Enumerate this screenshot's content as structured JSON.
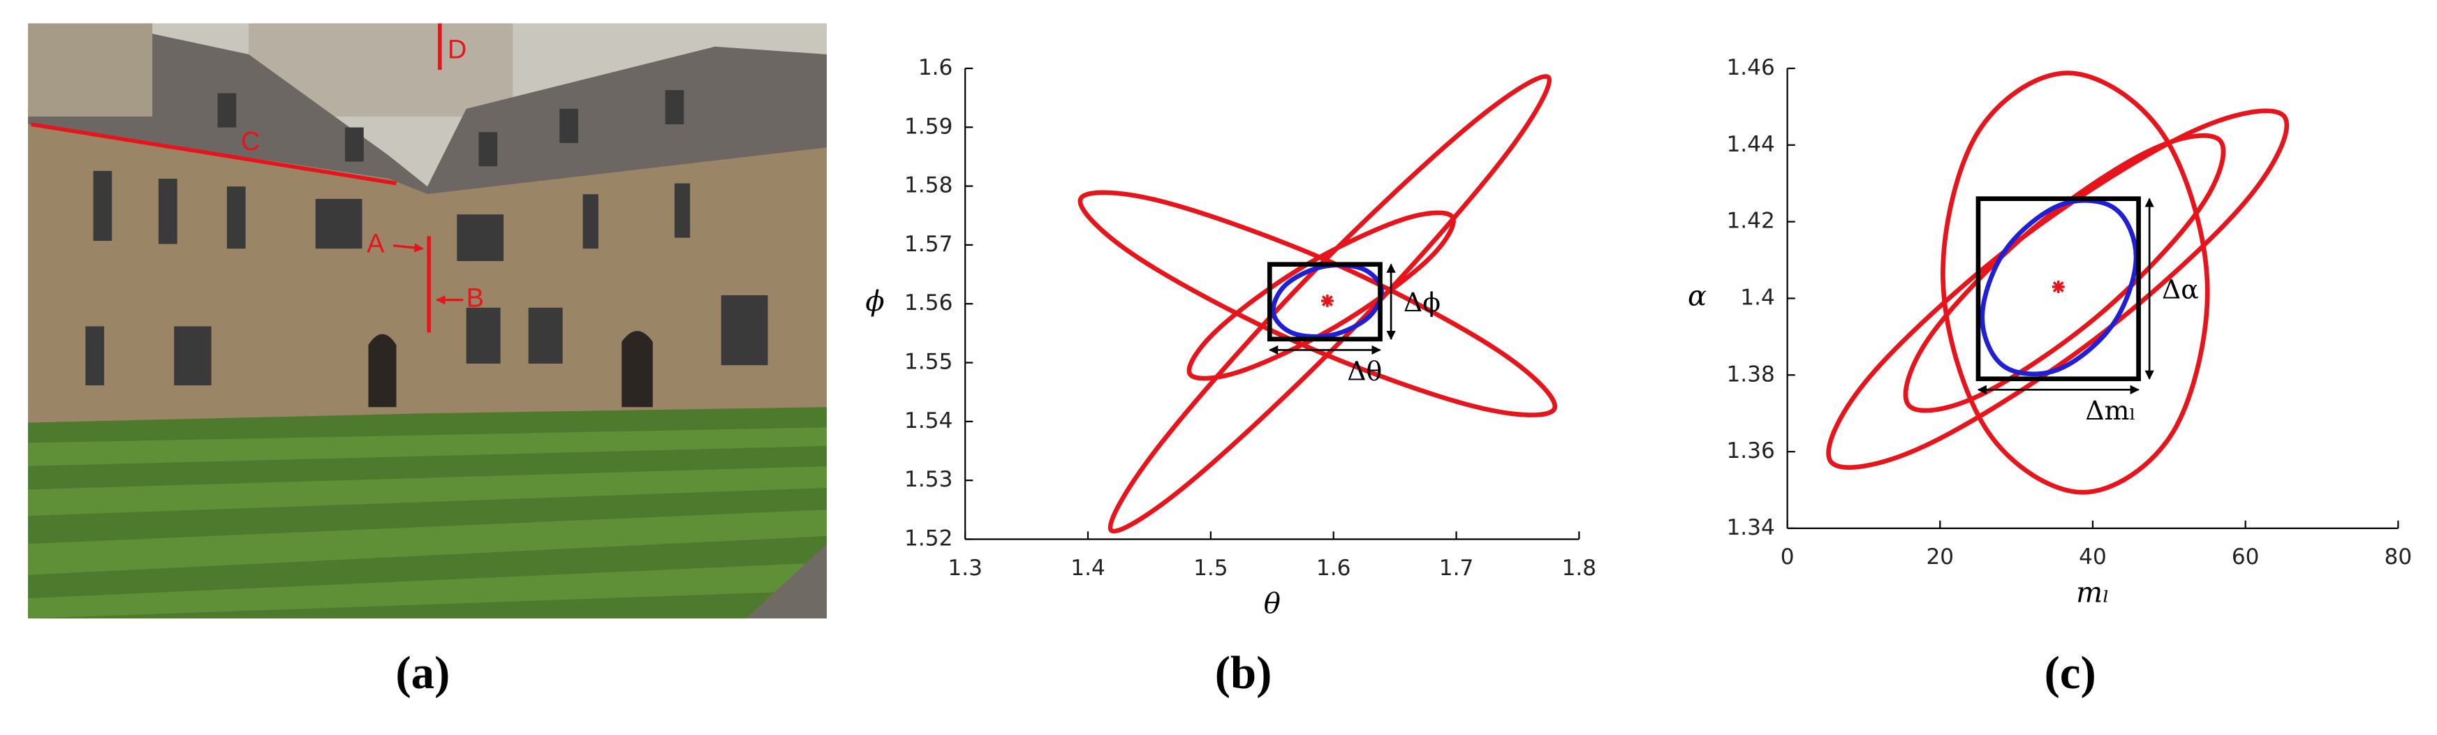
{
  "photo": {
    "labels": [
      "A",
      "B",
      "C",
      "D"
    ],
    "caption": "(a)"
  },
  "chart_data": [
    {
      "type": "ellipse",
      "caption": "(b)",
      "xlabel": "θ",
      "ylabel": "ϕ",
      "xlim": [
        1.3,
        1.8
      ],
      "xticks": [
        1.3,
        1.4,
        1.5,
        1.6,
        1.7,
        1.8
      ],
      "ylim": [
        1.52,
        1.6
      ],
      "yticks": [
        1.52,
        1.53,
        1.54,
        1.55,
        1.56,
        1.57,
        1.58,
        1.59,
        1.6
      ],
      "series": [
        {
          "color": "#e8141b",
          "x": [
            1.775,
            1.737,
            1.617,
            1.485,
            1.419,
            1.457,
            1.577,
            1.709
          ],
          "y": [
            1.5985,
            1.5844,
            1.556,
            1.53,
            1.5215,
            1.5356,
            1.564,
            1.59
          ]
        },
        {
          "color": "#e8141b",
          "x": [
            1.78,
            1.714,
            1.573,
            1.441,
            1.394,
            1.46,
            1.601,
            1.733
          ],
          "y": [
            1.5422,
            1.5426,
            1.5532,
            1.5678,
            1.5778,
            1.5774,
            1.5668,
            1.5522
          ]
        },
        {
          "color": "#e8141b",
          "x": [
            1.697,
            1.676,
            1.604,
            1.524,
            1.483,
            1.505,
            1.576,
            1.656
          ],
          "y": [
            1.5747,
            1.5673,
            1.5564,
            1.5485,
            1.5481,
            1.5555,
            1.5664,
            1.5743
          ]
        },
        {
          "color": "#1f1fd6",
          "x": [
            1.639,
            1.623,
            1.591,
            1.561,
            1.551,
            1.567,
            1.599,
            1.629
          ],
          "y": [
            1.5625,
            1.566,
            1.5663,
            1.5632,
            1.5585,
            1.555,
            1.5547,
            1.5578
          ]
        }
      ],
      "center": {
        "x": 1.595,
        "y": 1.5605,
        "color": "#e8141b"
      },
      "box": {
        "x": [
          1.548,
          1.638
        ],
        "y": [
          1.554,
          1.5667
        ],
        "color": "#000000"
      },
      "annotations": [
        "Δθ",
        "Δϕ"
      ]
    },
    {
      "type": "ellipse",
      "caption": "(c)",
      "xlabel": "mₗ",
      "ylabel": "α",
      "xlim": [
        0,
        80
      ],
      "xticks": [
        0,
        20,
        40,
        60,
        80
      ],
      "ylim": [
        1.34,
        1.46
      ],
      "yticks": [
        1.34,
        1.36,
        1.38,
        1.4,
        1.42,
        1.44,
        1.46
      ],
      "series": [
        {
          "color": "#e8141b",
          "x": [
            36.7,
            49.2,
            55.0,
            50.6,
            38.7,
            26.2,
            20.4,
            24.8
          ],
          "y": [
            1.4588,
            1.4428,
            1.4041,
            1.3654,
            1.3494,
            1.3654,
            1.4041,
            1.4428
          ]
        },
        {
          "color": "#e8141b",
          "x": [
            65.1,
            59.9,
            40.3,
            17.9,
            5.7,
            10.9,
            30.5,
            52.9
          ],
          "y": [
            1.4474,
            1.425,
            1.3894,
            1.3614,
            1.3574,
            1.3798,
            1.4154,
            1.4434
          ]
        },
        {
          "color": "#e8141b",
          "x": [
            56.7,
            54.0,
            40.9,
            25.1,
            15.9,
            18.6,
            31.7,
            47.5
          ],
          "y": [
            1.4411,
            1.4234,
            1.3958,
            1.3746,
            1.3721,
            1.3898,
            1.4174,
            1.4386
          ]
        },
        {
          "color": "#1f1fd6",
          "x": [
            42.85,
            45.67,
            42.6,
            35.42,
            28.35,
            25.53,
            28.6,
            35.78
          ],
          "y": [
            1.4235,
            1.4105,
            1.3931,
            1.3814,
            1.3823,
            1.3953,
            1.4127,
            1.4244
          ]
        }
      ],
      "center": {
        "x": 35.5,
        "y": 1.403,
        "color": "#e8141b"
      },
      "box": {
        "x": [
          25,
          46
        ],
        "y": [
          1.379,
          1.426
        ],
        "color": "#000000"
      },
      "annotations": [
        "Δmₗ",
        "Δα"
      ]
    }
  ]
}
